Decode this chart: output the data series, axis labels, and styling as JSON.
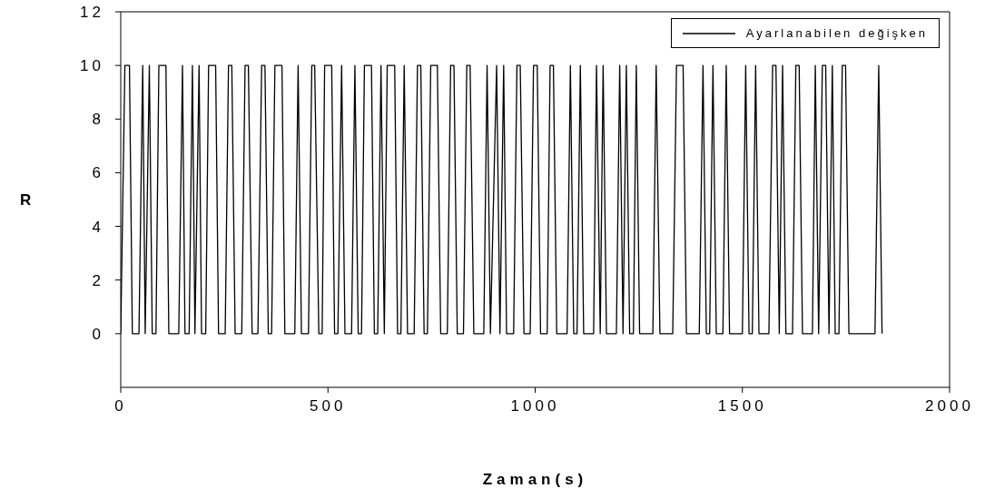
{
  "chart_data": {
    "type": "line",
    "xlabel": "Zaman(s)",
    "ylabel": "R",
    "xlim": [
      0,
      2000
    ],
    "xticks": [
      0,
      500,
      1000,
      1500,
      2000
    ],
    "ylim": [
      -2,
      12
    ],
    "yticks": [
      0,
      2,
      4,
      6,
      8,
      10,
      12
    ],
    "legend": "top right",
    "marker": "none",
    "line_style": "solid",
    "series": [
      {
        "name": "Ayarlanabilen değişken",
        "color": "#000000",
        "x": [
          0,
          10,
          21,
          28,
          44,
          53,
          59,
          69,
          76,
          85,
          92,
          109,
          116,
          140,
          149,
          155,
          165,
          173,
          179,
          189,
          195,
          205,
          212,
          229,
          236,
          252,
          260,
          268,
          276,
          292,
          300,
          308,
          317,
          331,
          340,
          348,
          356,
          364,
          372,
          389,
          396,
          420,
          428,
          436,
          453,
          461,
          468,
          478,
          486,
          492,
          509,
          516,
          524,
          533,
          541,
          557,
          565,
          573,
          581,
          588,
          605,
          612,
          620,
          628,
          636,
          643,
          661,
          668,
          676,
          684,
          692,
          708,
          716,
          724,
          732,
          740,
          748,
          764,
          772,
          788,
          796,
          804,
          812,
          827,
          835,
          843,
          852,
          876,
          884,
          892,
          907,
          915,
          924,
          931,
          948,
          956,
          964,
          973,
          988,
          996,
          1005,
          1013,
          1029,
          1036,
          1044,
          1052,
          1077,
          1085,
          1093,
          1101,
          1109,
          1117,
          1141,
          1148,
          1157,
          1164,
          1172,
          1196,
          1204,
          1212,
          1220,
          1228,
          1237,
          1244,
          1252,
          1284,
          1292,
          1301,
          1332,
          1341,
          1357,
          1365,
          1396,
          1405,
          1413,
          1421,
          1429,
          1437,
          1453,
          1461,
          1469,
          1500,
          1508,
          1516,
          1524,
          1532,
          1540,
          1564,
          1573,
          1581,
          1589,
          1597,
          1605,
          1621,
          1629,
          1637,
          1645,
          1669,
          1676,
          1684,
          1693,
          1701,
          1709,
          1717,
          1724,
          1733,
          1741,
          1749,
          1757,
          1820,
          1829,
          1837
        ],
        "values": [
          0,
          10,
          10,
          0,
          0,
          10,
          0,
          10,
          0,
          0,
          10,
          10,
          0,
          0,
          10,
          0,
          0,
          10,
          0,
          10,
          0,
          0,
          10,
          10,
          0,
          0,
          10,
          10,
          0,
          0,
          10,
          10,
          0,
          0,
          10,
          10,
          0,
          0,
          10,
          10,
          0,
          0,
          10,
          0,
          0,
          10,
          10,
          0,
          0,
          10,
          10,
          0,
          0,
          10,
          0,
          0,
          10,
          0,
          0,
          10,
          10,
          0,
          0,
          10,
          0,
          10,
          10,
          0,
          0,
          10,
          0,
          0,
          10,
          10,
          0,
          0,
          10,
          10,
          0,
          0,
          10,
          10,
          0,
          0,
          10,
          10,
          0,
          0,
          10,
          0,
          10,
          0,
          10,
          0,
          0,
          10,
          10,
          0,
          0,
          10,
          10,
          0,
          0,
          10,
          10,
          0,
          0,
          10,
          0,
          0,
          10,
          0,
          0,
          10,
          0,
          10,
          0,
          0,
          10,
          0,
          10,
          0,
          0,
          10,
          0,
          0,
          10,
          0,
          0,
          10,
          10,
          0,
          0,
          10,
          0,
          0,
          10,
          0,
          0,
          10,
          0,
          0,
          10,
          0,
          0,
          10,
          0,
          0,
          10,
          10,
          0,
          10,
          0,
          0,
          10,
          10,
          0,
          0,
          10,
          0,
          10,
          10,
          0,
          10,
          0,
          0,
          10,
          10,
          0,
          0,
          10,
          0
        ]
      }
    ]
  }
}
